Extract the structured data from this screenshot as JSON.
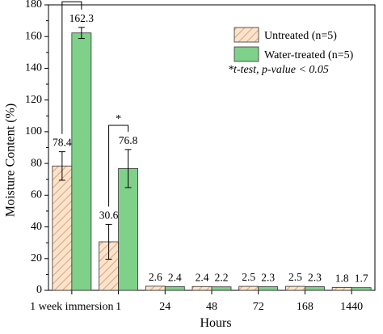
{
  "chart_data": {
    "type": "bar",
    "xlabel": "Hours",
    "ylabel": "Moisture Content (%)",
    "ylim": [
      0,
      180
    ],
    "y_ticks": [
      0,
      20,
      40,
      60,
      80,
      100,
      120,
      140,
      160,
      180
    ],
    "categories": [
      "1 week immersion",
      "1",
      "24",
      "48",
      "72",
      "168",
      "1440"
    ],
    "highlight_category_color": "#e8262b",
    "series": [
      {
        "name": "Untreated (n=5)",
        "values": [
          78.4,
          30.6,
          2.6,
          2.4,
          2.5,
          2.5,
          1.8
        ],
        "errors": [
          9,
          11,
          0.3,
          0.3,
          0.3,
          0.3,
          0.3
        ],
        "color": "#f5c9a2",
        "pattern": "hatch",
        "labels": [
          "78.4",
          "30.6",
          "2.6",
          "2.4",
          "2.5",
          "2.5",
          "1.8"
        ]
      },
      {
        "name": "Water-treated (n=5)",
        "values": [
          162.3,
          76.8,
          2.4,
          2.2,
          2.3,
          2.3,
          1.7
        ],
        "errors": [
          3.5,
          12,
          0.3,
          0.3,
          0.3,
          0.3,
          0.3
        ],
        "color": "#7fd18a",
        "pattern": "solid",
        "labels": [
          "162.3",
          "76.8",
          "2.4",
          "2.2",
          "2.3",
          "2.3",
          "1.7"
        ]
      }
    ],
    "significance": [
      {
        "category_index": 0,
        "marker": "*",
        "bracket_top": 182
      },
      {
        "category_index": 1,
        "marker": "*",
        "bracket_top": 104
      }
    ],
    "note": "*t-test, p-value < 0.05",
    "legend_position": "top-right",
    "grid": false
  }
}
